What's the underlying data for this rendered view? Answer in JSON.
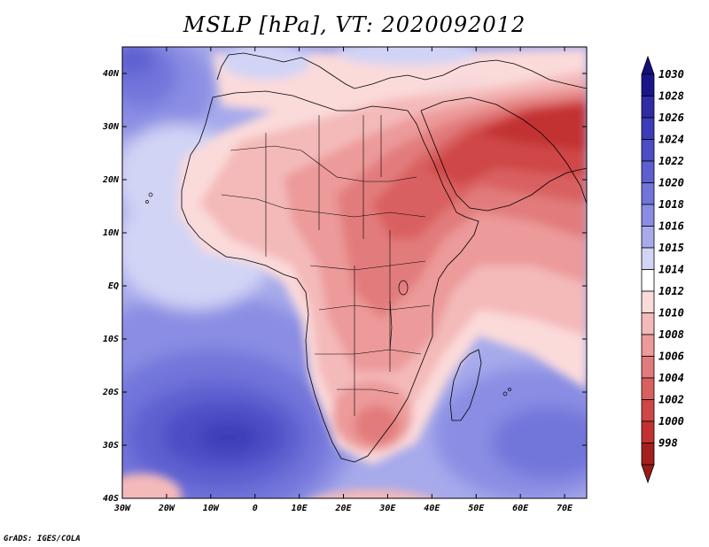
{
  "title": "MSLP [hPa], VT: 2020092012",
  "credit": "GrADS: IGES/COLA",
  "map": {
    "projection": "lat-lon",
    "lon_range": [
      -30,
      75
    ],
    "lat_range": [
      -40,
      45
    ],
    "lon_ticks": [
      {
        "value": -30,
        "label": "30W"
      },
      {
        "value": -20,
        "label": "20W"
      },
      {
        "value": -10,
        "label": "10W"
      },
      {
        "value": 0,
        "label": "0"
      },
      {
        "value": 10,
        "label": "10E"
      },
      {
        "value": 20,
        "label": "20E"
      },
      {
        "value": 30,
        "label": "30E"
      },
      {
        "value": 40,
        "label": "40E"
      },
      {
        "value": 50,
        "label": "50E"
      },
      {
        "value": 60,
        "label": "60E"
      },
      {
        "value": 70,
        "label": "70E"
      }
    ],
    "lat_ticks": [
      {
        "value": 40,
        "label": "40N"
      },
      {
        "value": 30,
        "label": "30N"
      },
      {
        "value": 20,
        "label": "20N"
      },
      {
        "value": 10,
        "label": "10N"
      },
      {
        "value": 0,
        "label": "EQ"
      },
      {
        "value": -10,
        "label": "10S"
      },
      {
        "value": -20,
        "label": "20S"
      },
      {
        "value": -30,
        "label": "30S"
      },
      {
        "value": -40,
        "label": "40S"
      }
    ]
  },
  "colorbar": {
    "levels": [
      {
        "label": "1030",
        "color": "#1a168a"
      },
      {
        "label": "1028",
        "color": "#2f2ca6"
      },
      {
        "label": "1026",
        "color": "#3d3cb8"
      },
      {
        "label": "1024",
        "color": "#4d4dc6"
      },
      {
        "label": "1022",
        "color": "#5e60d0"
      },
      {
        "label": "1020",
        "color": "#7274da"
      },
      {
        "label": "1018",
        "color": "#8a8de3"
      },
      {
        "label": "1016",
        "color": "#a7aaeb"
      },
      {
        "label": "1015",
        "color": "#d2d4f5"
      },
      {
        "label": "1014",
        "color": "#ffffff"
      },
      {
        "label": "1012",
        "color": "#fbdada"
      },
      {
        "label": "1010",
        "color": "#f4b9b9"
      },
      {
        "label": "1008",
        "color": "#ec9a9a"
      },
      {
        "label": "1006",
        "color": "#e27c7c"
      },
      {
        "label": "1004",
        "color": "#d96060"
      },
      {
        "label": "1002",
        "color": "#cf4646"
      },
      {
        "label": "1000",
        "color": "#c23232"
      },
      {
        "label": "998",
        "color": "#a51f1f"
      }
    ],
    "top_color": "#130f7a",
    "bottom_color": "#9a1a1a"
  },
  "pressure_centers": [
    {
      "lon": -14,
      "lat": -30,
      "rx_deg": 18,
      "ry_deg": 8,
      "value": 1028
    },
    {
      "lon": -23,
      "lat": 35,
      "rx_deg": 8,
      "ry_deg": 6,
      "value": 1022
    },
    {
      "lon": 60,
      "lat": -32,
      "rx_deg": 15,
      "ry_deg": 8,
      "value": 1020
    },
    {
      "lon": 60,
      "lat": 28,
      "rx_deg": 20,
      "ry_deg": 10,
      "value": 1000
    },
    {
      "lon": 30,
      "lat": 15,
      "rx_deg": 15,
      "ry_deg": 10,
      "value": 1006
    }
  ]
}
